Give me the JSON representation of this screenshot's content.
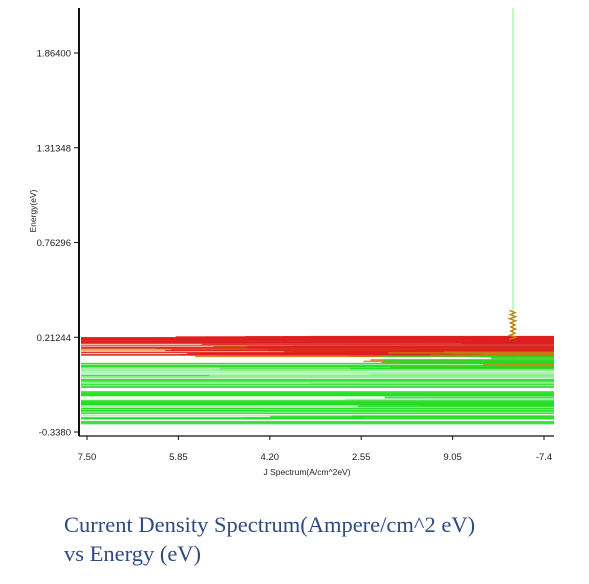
{
  "chart_data": {
    "type": "line",
    "title": "",
    "xlabel": "J  Spectrum(A/cm^2eV)",
    "ylabel": "Energy(eV)",
    "x_tick_labels": [
      "7.50",
      "5.85",
      "4.20",
      "2.55",
      "9.05",
      "-7.4"
    ],
    "y_tick_labels": [
      "1.86400",
      "1.31348",
      "0.76296",
      "0.21244",
      "-0.3380"
    ],
    "y_ticks": [
      1.864,
      1.31348,
      0.76296,
      0.21244,
      -0.338
    ],
    "ylim": [
      -0.338,
      2.1
    ],
    "grid": false,
    "legend": "none",
    "colors": {
      "red": "#dd1f1f",
      "green": "#22dd22",
      "light_green": "#9ff09f",
      "orange": "#cc7a10"
    },
    "description_series": [
      {
        "color": "red",
        "energy_range": [
          0.1,
          0.22
        ]
      },
      {
        "color": "green",
        "energy_range": [
          -0.29,
          0.06
        ]
      }
    ]
  },
  "caption": {
    "line1": "Current Density Spectrum(Ampere/cm^2 eV)",
    "line2": "vs Energy (eV)"
  }
}
